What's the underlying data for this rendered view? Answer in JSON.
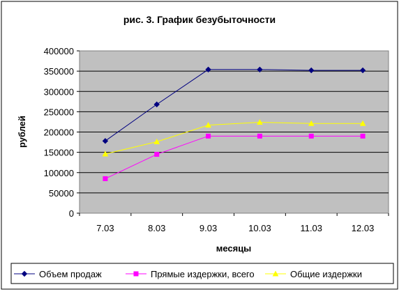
{
  "chart_data": {
    "type": "line",
    "title": "рис. 3. График безубыточности",
    "xlabel": "месяцы",
    "ylabel": "рублей",
    "categories": [
      "7.03",
      "8.03",
      "9.03",
      "10.03",
      "11.03",
      "12.03"
    ],
    "ylim": [
      0,
      400000
    ],
    "yticks": [
      "0",
      "50000",
      "100000",
      "150000",
      "200000",
      "250000",
      "300000",
      "350000",
      "400000"
    ],
    "grid": true,
    "plot_background": "#c0c0c0",
    "legend_position": "bottom",
    "series": [
      {
        "name": "Объем продаж",
        "color": "#000080",
        "marker": "diamond",
        "values": [
          178000,
          268000,
          354000,
          354000,
          352000,
          352000
        ]
      },
      {
        "name": "Прямые издержки, всего",
        "color": "#ff00ff",
        "marker": "square",
        "values": [
          85000,
          145000,
          190000,
          190000,
          190000,
          190000
        ]
      },
      {
        "name": "Общие издержки",
        "color": "#ffff00",
        "marker": "triangle",
        "values": [
          146000,
          176000,
          217000,
          224000,
          221000,
          221000
        ]
      }
    ]
  }
}
